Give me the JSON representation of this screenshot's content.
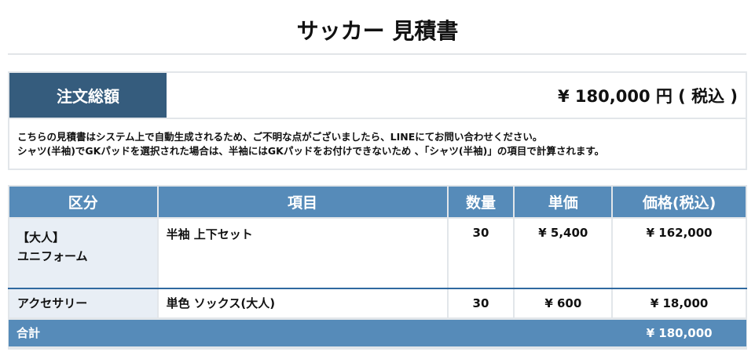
{
  "title": "サッカー 見積書",
  "order_total": {
    "label": "注文総額",
    "value": "¥ 180,000 円 ( 税込 )"
  },
  "notes": [
    "こちらの見積書はシステム上で自動生成されるため、ご不明な点がございましたら、LINEにてお問い合わせください。",
    "シャツ(半袖)でGKパッドを選択された場合は、半袖にはGKパッドをお付けできないため 、「シャツ(半袖)」の項目で計算されます。"
  ],
  "table": {
    "headers": [
      "区分",
      "項目",
      "数量",
      "単価",
      "価格(税込)"
    ],
    "rows": [
      {
        "category_line1": "【大人】",
        "category_line2": "ユニフォーム",
        "item": "半袖 上下セット",
        "qty": "30",
        "unit": "¥ 5,400",
        "price": "¥ 162,000"
      },
      {
        "category_line1": "アクセサリー",
        "category_line2": "",
        "item": "単色 ソックス(大人)",
        "qty": "30",
        "unit": "¥ 600",
        "price": "¥ 18,000"
      }
    ],
    "total_label": "合計",
    "total_value": "¥ 180,000"
  }
}
